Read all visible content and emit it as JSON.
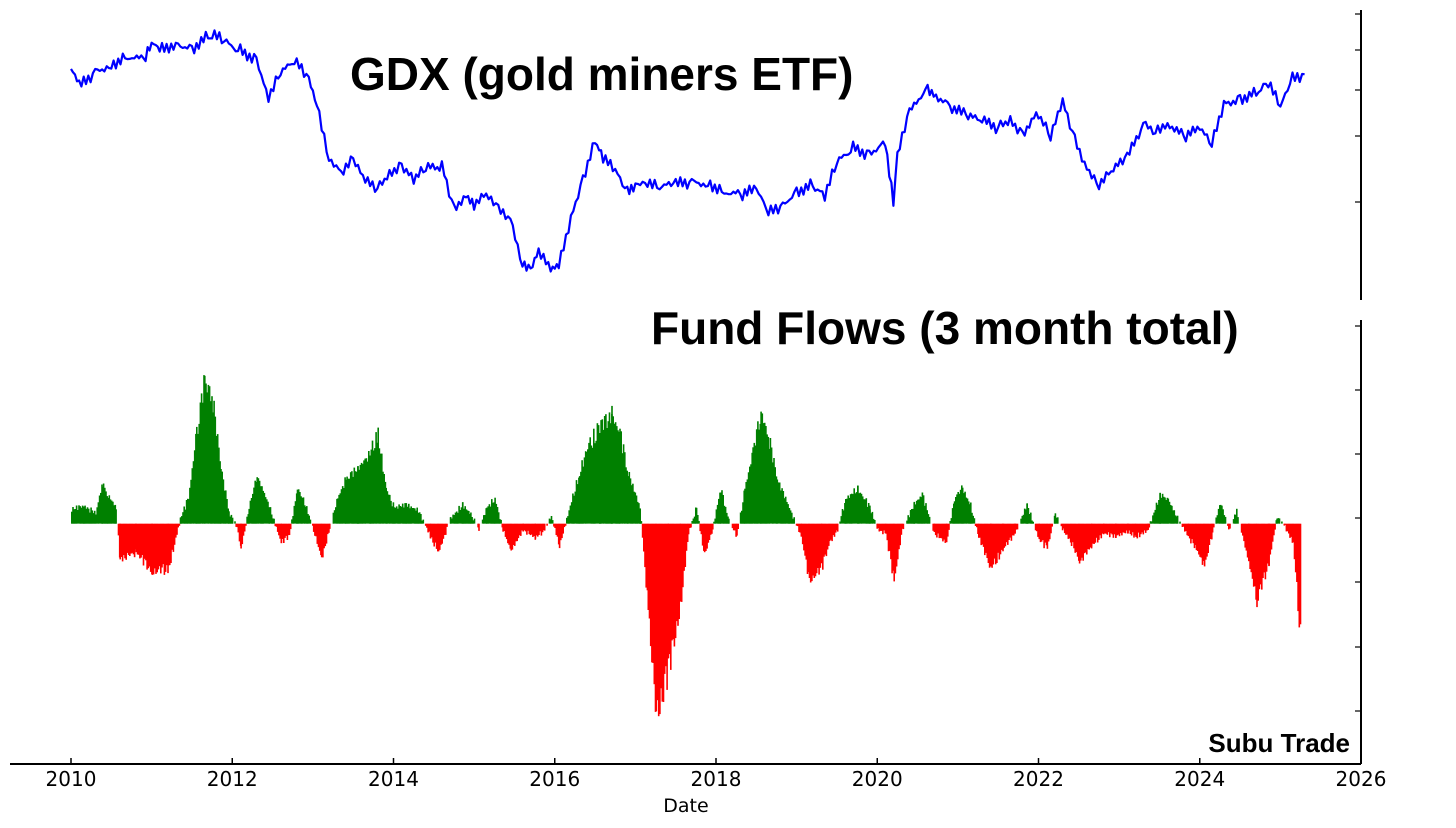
{
  "chart_data": [
    {
      "type": "line",
      "title": "GDX (gold miners ETF)",
      "color": "#0000ff",
      "x_range": [
        2010,
        2026
      ],
      "y_range": [
        0,
        100
      ],
      "y_tick_labels_shown": false,
      "x": [
        2010.0,
        2010.1,
        2010.3,
        2010.5,
        2010.7,
        2010.9,
        2011.0,
        2011.1,
        2011.3,
        2011.5,
        2011.7,
        2011.75,
        2011.9,
        2012.1,
        2012.3,
        2012.45,
        2012.6,
        2012.8,
        2012.95,
        2013.05,
        2013.2,
        2013.35,
        2013.5,
        2013.65,
        2013.8,
        2013.95,
        2014.1,
        2014.25,
        2014.4,
        2014.6,
        2014.75,
        2014.9,
        2015.0,
        2015.15,
        2015.3,
        2015.45,
        2015.6,
        2015.7,
        2015.8,
        2015.95,
        2016.05,
        2016.2,
        2016.35,
        2016.5,
        2016.6,
        2016.75,
        2016.9,
        2017.0,
        2017.15,
        2017.3,
        2017.5,
        2017.7,
        2017.9,
        2018.1,
        2018.3,
        2018.5,
        2018.65,
        2018.8,
        2019.0,
        2019.2,
        2019.35,
        2019.5,
        2019.7,
        2019.9,
        2020.1,
        2020.2,
        2020.25,
        2020.4,
        2020.6,
        2020.7,
        2020.9,
        2021.1,
        2021.3,
        2021.5,
        2021.65,
        2021.8,
        2022.0,
        2022.15,
        2022.3,
        2022.45,
        2022.6,
        2022.75,
        2022.9,
        2023.1,
        2023.3,
        2023.45,
        2023.6,
        2023.8,
        2024.0,
        2024.15,
        2024.3,
        2024.5,
        2024.7,
        2024.85,
        2025.0,
        2025.15,
        2025.3
      ],
      "y": [
        83,
        76,
        82,
        85,
        88,
        86,
        92,
        90,
        93,
        91,
        95,
        96,
        93,
        90,
        87,
        73,
        82,
        85,
        78,
        70,
        50,
        44,
        48,
        40,
        38,
        44,
        47,
        41,
        45,
        46,
        30,
        36,
        32,
        35,
        29,
        26,
        10,
        8,
        14,
        6,
        8,
        27,
        42,
        56,
        49,
        44,
        36,
        40,
        41,
        38,
        39,
        40,
        40,
        37,
        35,
        37,
        28,
        31,
        37,
        39,
        35,
        47,
        53,
        51,
        56,
        33,
        50,
        66,
        76,
        74,
        69,
        65,
        63,
        61,
        64,
        59,
        66,
        57,
        70,
        56,
        46,
        40,
        44,
        49,
        62,
        60,
        63,
        57,
        60,
        54,
        70,
        72,
        74,
        78,
        68,
        79,
        81
      ]
    },
    {
      "type": "area",
      "title": "Fund Flows (3 month total)",
      "color_positive": "#008000",
      "color_negative": "#ff0000",
      "x_range": [
        2010,
        2026
      ],
      "y_range": [
        -375,
        310
      ],
      "y_tick_labels_shown": false,
      "x": [
        2010.0,
        2010.15,
        2010.3,
        2010.38,
        2010.45,
        2010.55,
        2010.6,
        2010.8,
        2011.0,
        2011.2,
        2011.35,
        2011.45,
        2011.55,
        2011.65,
        2011.75,
        2011.85,
        2011.95,
        2012.05,
        2012.1,
        2012.2,
        2012.3,
        2012.45,
        2012.6,
        2012.7,
        2012.8,
        2012.9,
        2013.0,
        2013.1,
        2013.2,
        2013.3,
        2013.4,
        2013.55,
        2013.7,
        2013.8,
        2013.9,
        2014.0,
        2014.15,
        2014.3,
        2014.45,
        2014.55,
        2014.7,
        2014.85,
        2014.95,
        2015.05,
        2015.15,
        2015.25,
        2015.35,
        2015.45,
        2015.6,
        2015.75,
        2015.85,
        2015.95,
        2016.05,
        2016.2,
        2016.3,
        2016.4,
        2016.55,
        2016.7,
        2016.8,
        2016.9,
        2017.05,
        2017.15,
        2017.25,
        2017.4,
        2017.55,
        2017.65,
        2017.75,
        2017.85,
        2017.95,
        2018.05,
        2018.15,
        2018.25,
        2018.35,
        2018.45,
        2018.55,
        2018.65,
        2018.75,
        2018.9,
        2019.05,
        2019.15,
        2019.3,
        2019.4,
        2019.5,
        2019.6,
        2019.75,
        2019.9,
        2020.0,
        2020.1,
        2020.2,
        2020.3,
        2020.45,
        2020.55,
        2020.7,
        2020.85,
        2020.95,
        2021.05,
        2021.15,
        2021.25,
        2021.4,
        2021.55,
        2021.7,
        2021.85,
        2022.0,
        2022.1,
        2022.2,
        2022.3,
        2022.4,
        2022.5,
        2022.65,
        2022.8,
        2022.95,
        2023.1,
        2023.2,
        2023.35,
        2023.5,
        2023.6,
        2023.7,
        2023.85,
        2023.95,
        2024.05,
        2024.15,
        2024.25,
        2024.35,
        2024.45,
        2024.6,
        2024.7,
        2024.85,
        2024.95,
        2025.05,
        2025.15,
        2025.25
      ],
      "y": [
        22,
        28,
        16,
        62,
        45,
        25,
        -55,
        -45,
        -75,
        -70,
        8,
        40,
        140,
        225,
        190,
        90,
        18,
        -5,
        -40,
        25,
        75,
        28,
        -30,
        -18,
        55,
        30,
        -10,
        -55,
        -8,
        40,
        70,
        85,
        110,
        140,
        55,
        25,
        30,
        20,
        -20,
        -45,
        8,
        30,
        15,
        -8,
        25,
        40,
        -10,
        -42,
        -10,
        -22,
        -12,
        12,
        -35,
        35,
        80,
        120,
        150,
        170,
        140,
        80,
        25,
        -130,
        -300,
        -230,
        -130,
        -15,
        25,
        -50,
        -8,
        55,
        5,
        -20,
        55,
        110,
        175,
        130,
        70,
        25,
        -20,
        -90,
        -70,
        -30,
        -10,
        38,
        55,
        25,
        -10,
        -15,
        -90,
        -10,
        30,
        45,
        -15,
        -30,
        40,
        55,
        28,
        -20,
        -70,
        -40,
        -15,
        30,
        -25,
        -38,
        15,
        -10,
        -30,
        -60,
        -35,
        -15,
        -20,
        -12,
        -20,
        -10,
        45,
        38,
        12,
        -20,
        -40,
        -65,
        -15,
        35,
        -10,
        20,
        -60,
        -120,
        -60,
        10,
        -5,
        -30,
        -190
      ]
    }
  ],
  "x_axis": {
    "label": "Date",
    "ticks": [
      2010,
      2012,
      2014,
      2016,
      2018,
      2020,
      2022,
      2024,
      2026
    ],
    "tick_labels": [
      "2010",
      "2012",
      "2014",
      "2016",
      "2018",
      "2020",
      "2022",
      "2024",
      "2026"
    ]
  },
  "watermark": "Subu Trade"
}
